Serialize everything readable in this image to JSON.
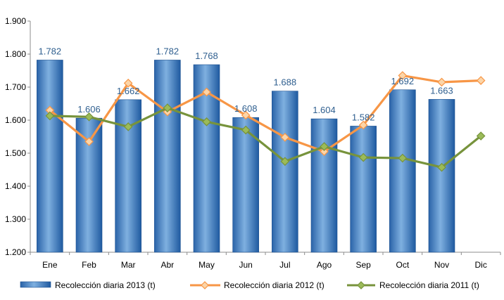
{
  "chart_data": {
    "type": "bar",
    "categories": [
      "Ene",
      "Feb",
      "Mar",
      "Abr",
      "May",
      "Jun",
      "Jul",
      "Ago",
      "Sep",
      "Oct",
      "Nov",
      "Dic"
    ],
    "series": [
      {
        "name": "Recolección diaria  2013 (t)",
        "type": "bar",
        "values": [
          1782,
          1606,
          1662,
          1782,
          1768,
          1608,
          1688,
          1604,
          1582,
          1692,
          1663,
          null
        ],
        "labels": [
          "1.782",
          "1.606",
          "1.662",
          "1.782",
          "1.768",
          "1.608",
          "1.688",
          "1.604",
          "1.582",
          "1.692",
          "1.663",
          ""
        ]
      },
      {
        "name": "Recolección diaria  2012 (t)",
        "type": "line",
        "values": [
          1630,
          1535,
          1712,
          1625,
          1685,
          1615,
          1548,
          1505,
          1585,
          1735,
          1715,
          1720
        ]
      },
      {
        "name": "Recolección diaria  2011 (t)",
        "type": "line",
        "values": [
          1613,
          1610,
          1580,
          1637,
          1595,
          1570,
          1475,
          1520,
          1487,
          1485,
          1457,
          1552
        ]
      }
    ],
    "ylim": [
      1200,
      1900
    ],
    "yticks": [
      1200,
      1300,
      1400,
      1500,
      1600,
      1700,
      1800,
      1900
    ],
    "ytick_labels": [
      "1.200",
      "1.300",
      "1.400",
      "1.500",
      "1.600",
      "1.700",
      "1.800",
      "1.900"
    ],
    "grid": false,
    "legend": "bottom",
    "colors": {
      "bar_light": "#6fa8dc",
      "bar_dark": "#1f5aa0",
      "bar_label": "#2f5f8f",
      "line_2012": "#f79646",
      "marker_2012": "#fcd5a8",
      "line_2011": "#77933c",
      "marker_2011": "#9bbb59"
    }
  }
}
